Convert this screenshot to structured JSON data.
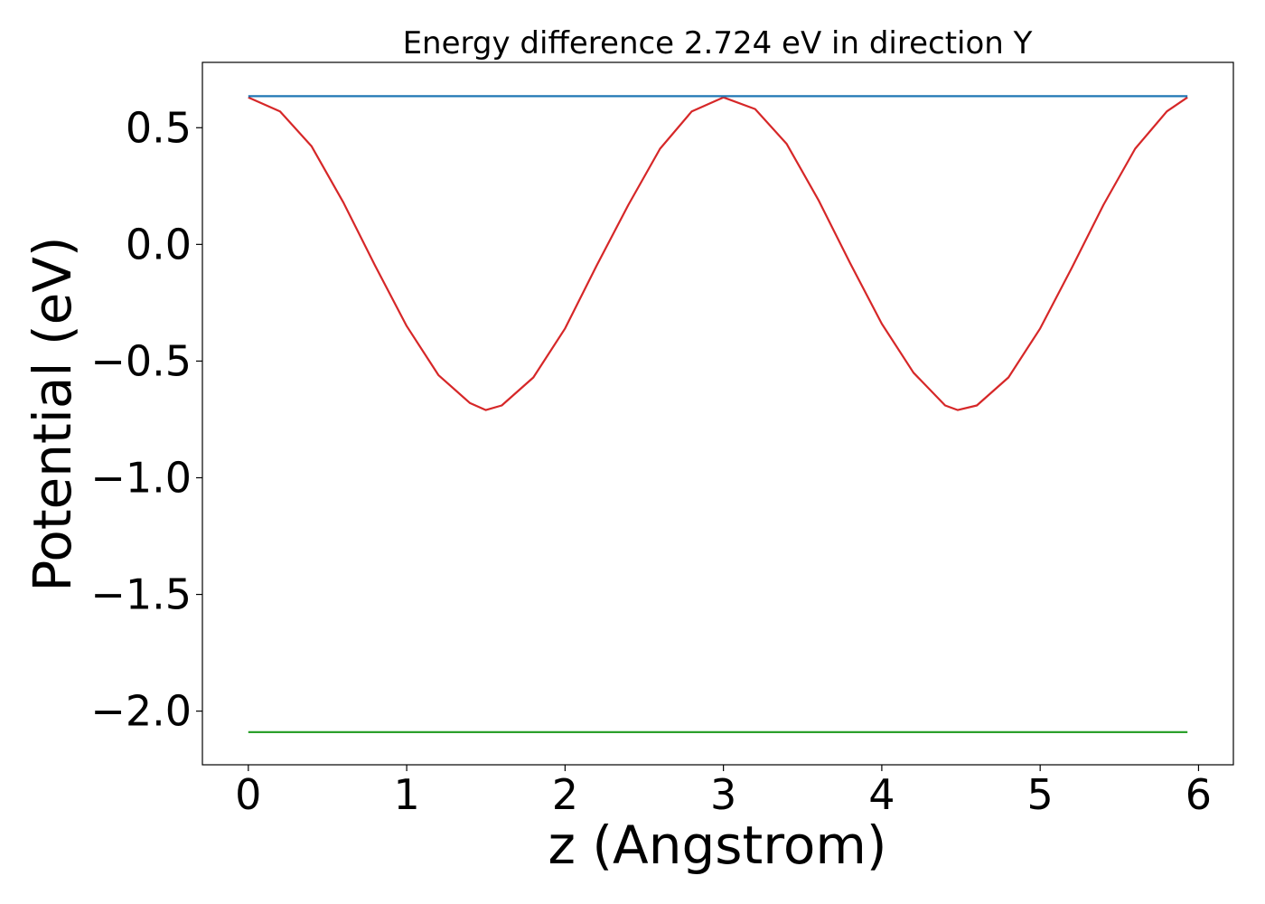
{
  "chart_data": {
    "type": "line",
    "title": "Energy difference 2.724 eV in direction Y",
    "xlabel": "z (Angstrom)",
    "ylabel": "Potential (eV)",
    "xlim": [
      -0.29,
      6.22
    ],
    "ylim": [
      -2.23,
      0.78
    ],
    "xticks": [
      0,
      1,
      2,
      3,
      4,
      5,
      6
    ],
    "xtick_labels": [
      "0",
      "1",
      "2",
      "3",
      "4",
      "5",
      "6"
    ],
    "yticks": [
      0.5,
      0.0,
      -0.5,
      -1.0,
      -1.5,
      -2.0
    ],
    "ytick_labels": [
      "0.5",
      "0.0",
      "−0.5",
      "−1.0",
      "−1.5",
      "−2.0"
    ],
    "grid": false,
    "legend": false,
    "series": [
      {
        "color": "#d62728",
        "x": [
          0.0,
          0.2,
          0.4,
          0.6,
          0.8,
          1.0,
          1.2,
          1.4,
          1.5,
          1.6,
          1.8,
          2.0,
          2.2,
          2.4,
          2.6,
          2.8,
          3.0,
          3.2,
          3.4,
          3.6,
          3.8,
          4.0,
          4.2,
          4.4,
          4.48,
          4.6,
          4.8,
          5.0,
          5.2,
          5.4,
          5.6,
          5.8,
          5.93
        ],
        "y": [
          0.63,
          0.57,
          0.42,
          0.18,
          -0.09,
          -0.35,
          -0.56,
          -0.68,
          -0.71,
          -0.69,
          -0.57,
          -0.36,
          -0.09,
          0.17,
          0.41,
          0.57,
          0.63,
          0.58,
          0.43,
          0.19,
          -0.08,
          -0.34,
          -0.55,
          -0.69,
          -0.71,
          -0.69,
          -0.57,
          -0.36,
          -0.1,
          0.17,
          0.41,
          0.57,
          0.63
        ]
      },
      {
        "color": "#1f77b4",
        "x": [
          0.0,
          5.93
        ],
        "y": [
          0.635,
          0.635
        ]
      },
      {
        "color": "#2ca02c",
        "x": [
          0.0,
          5.93
        ],
        "y": [
          -2.09,
          -2.09
        ]
      }
    ]
  }
}
